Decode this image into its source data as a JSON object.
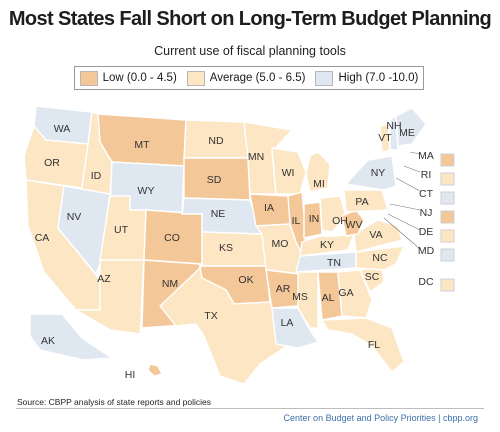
{
  "title": "Most States Fall Short on Long-Term Budget Planning",
  "subtitle": "Current use of fiscal planning tools",
  "legend": [
    {
      "key": "low",
      "label": "Low (0.0 - 4.5)",
      "color": "#f4c799"
    },
    {
      "key": "average",
      "label": "Average (5.0 - 6.5)",
      "color": "#fce6c4"
    },
    {
      "key": "high",
      "label": "High (7.0 -10.0)",
      "color": "#dfe7f1"
    }
  ],
  "states": [
    {
      "abbr": "WA",
      "category": "high"
    },
    {
      "abbr": "OR",
      "category": "average"
    },
    {
      "abbr": "CA",
      "category": "average"
    },
    {
      "abbr": "ID",
      "category": "average"
    },
    {
      "abbr": "NV",
      "category": "high"
    },
    {
      "abbr": "MT",
      "category": "low"
    },
    {
      "abbr": "WY",
      "category": "high"
    },
    {
      "abbr": "UT",
      "category": "average"
    },
    {
      "abbr": "AZ",
      "category": "average"
    },
    {
      "abbr": "CO",
      "category": "low"
    },
    {
      "abbr": "NM",
      "category": "low"
    },
    {
      "abbr": "ND",
      "category": "average"
    },
    {
      "abbr": "SD",
      "category": "low"
    },
    {
      "abbr": "NE",
      "category": "high"
    },
    {
      "abbr": "KS",
      "category": "average"
    },
    {
      "abbr": "OK",
      "category": "low"
    },
    {
      "abbr": "TX",
      "category": "average"
    },
    {
      "abbr": "MN",
      "category": "average"
    },
    {
      "abbr": "IA",
      "category": "low"
    },
    {
      "abbr": "MO",
      "category": "average"
    },
    {
      "abbr": "AR",
      "category": "low"
    },
    {
      "abbr": "LA",
      "category": "high"
    },
    {
      "abbr": "WI",
      "category": "average"
    },
    {
      "abbr": "IL",
      "category": "low"
    },
    {
      "abbr": "MI",
      "category": "average"
    },
    {
      "abbr": "IN",
      "category": "low"
    },
    {
      "abbr": "OH",
      "category": "average"
    },
    {
      "abbr": "KY",
      "category": "average"
    },
    {
      "abbr": "TN",
      "category": "high"
    },
    {
      "abbr": "MS",
      "category": "average"
    },
    {
      "abbr": "AL",
      "category": "low"
    },
    {
      "abbr": "GA",
      "category": "average"
    },
    {
      "abbr": "FL",
      "category": "average"
    },
    {
      "abbr": "SC",
      "category": "average"
    },
    {
      "abbr": "NC",
      "category": "average"
    },
    {
      "abbr": "VA",
      "category": "average"
    },
    {
      "abbr": "WV",
      "category": "low"
    },
    {
      "abbr": "PA",
      "category": "average"
    },
    {
      "abbr": "NY",
      "category": "high"
    },
    {
      "abbr": "VT",
      "category": "average"
    },
    {
      "abbr": "NH",
      "category": "high"
    },
    {
      "abbr": "ME",
      "category": "high"
    },
    {
      "abbr": "MA",
      "category": "low"
    },
    {
      "abbr": "RI",
      "category": "average"
    },
    {
      "abbr": "CT",
      "category": "high"
    },
    {
      "abbr": "NJ",
      "category": "low"
    },
    {
      "abbr": "DE",
      "category": "average"
    },
    {
      "abbr": "MD",
      "category": "high"
    },
    {
      "abbr": "DC",
      "category": "average"
    },
    {
      "abbr": "AK",
      "category": "high"
    },
    {
      "abbr": "HI",
      "category": "low"
    }
  ],
  "source": "Source: CBPP analysis of state reports and policies",
  "credit": "Center on Budget and Policy Priorities | cbpp.org"
}
